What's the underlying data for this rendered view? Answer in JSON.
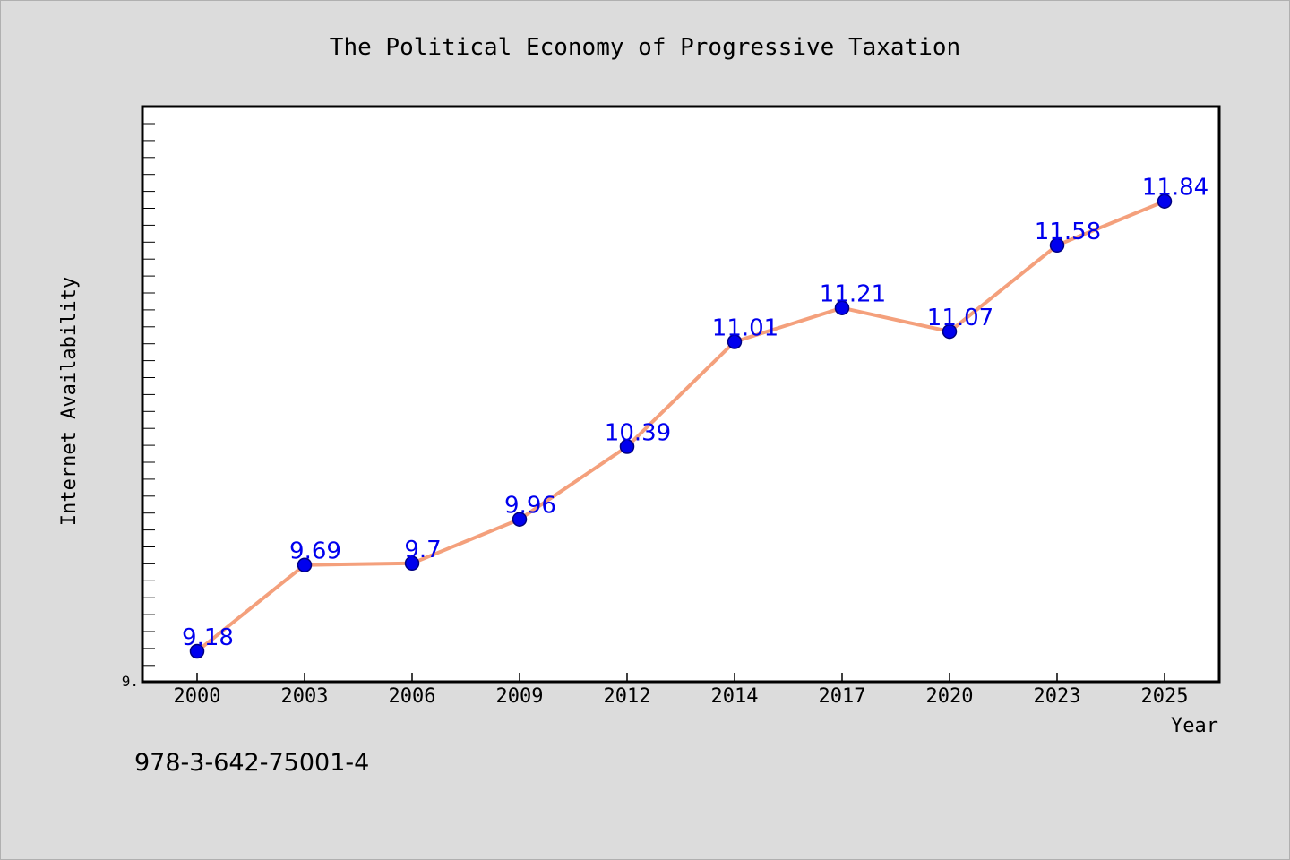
{
  "chart_data": {
    "type": "line",
    "title": "The Political Economy of Progressive Taxation",
    "xlabel": "Year",
    "ylabel": "Internet Availability",
    "categories": [
      "2000",
      "2003",
      "2006",
      "2009",
      "2012",
      "2014",
      "2017",
      "2020",
      "2023",
      "2025"
    ],
    "series": [
      {
        "values": [
          9.18,
          9.69,
          9.7,
          9.96,
          10.39,
          11.01,
          11.21,
          11.07,
          11.58,
          11.84
        ],
        "data_labels": [
          "9.18",
          "9.69",
          "9.7",
          "9.96",
          "10.39",
          "11.01",
          "11.21",
          "11.07",
          "11.58",
          "11.84"
        ]
      }
    ],
    "ylim": [
      9.0,
      12.4
    ],
    "yticks": [
      {
        "value": 9.0,
        "label": "9."
      }
    ],
    "grid": false,
    "legend": "none",
    "colors": {
      "line": "#f4a07c",
      "marker_fill": "#0000ee",
      "marker_stroke": "#000080",
      "data_label": "#0000ee",
      "plot_background": "#ffffff",
      "figure_background": "#dcdcdc"
    }
  },
  "footnote": "978-3-642-75001-4"
}
